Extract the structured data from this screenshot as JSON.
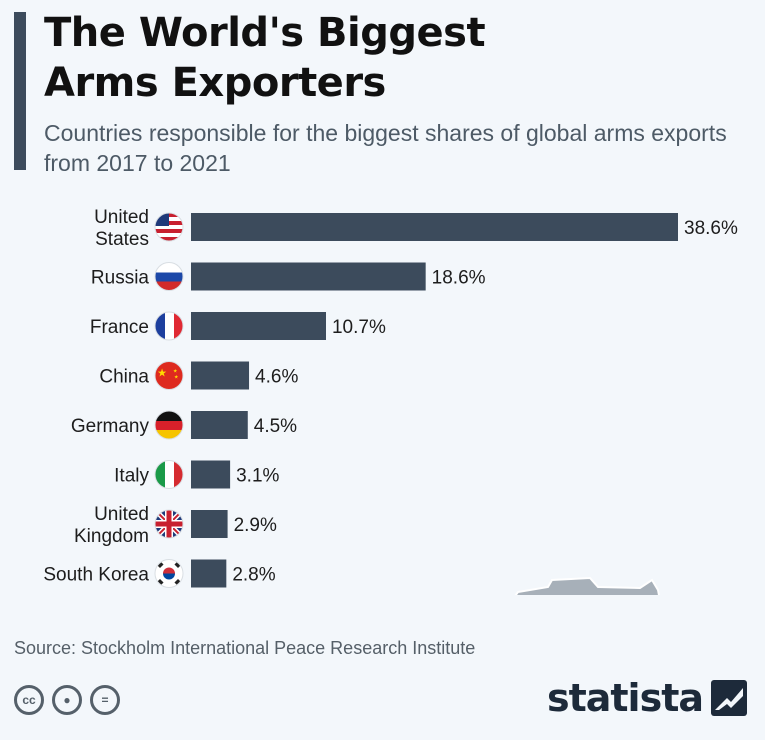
{
  "header": {
    "title_line1": "The World's Biggest",
    "title_line2": "Arms Exporters",
    "subtitle": "Countries responsible for the biggest shares of global arms exports from 2017 to 2021"
  },
  "chart_data": {
    "type": "bar",
    "orientation": "horizontal",
    "categories": [
      [
        "United",
        "States"
      ],
      [
        "Russia"
      ],
      [
        "France"
      ],
      [
        "China"
      ],
      [
        "Germany"
      ],
      [
        "Italy"
      ],
      [
        "United",
        "Kingdom"
      ],
      [
        "South Korea"
      ]
    ],
    "values": [
      38.6,
      18.6,
      10.7,
      4.6,
      4.5,
      3.1,
      2.9,
      2.8
    ],
    "value_labels": [
      "38.6%",
      "18.6%",
      "10.7%",
      "4.6%",
      "4.5%",
      "3.1%",
      "2.9%",
      "2.8%"
    ],
    "flags": [
      "us-flag-icon",
      "russia-flag-icon",
      "france-flag-icon",
      "china-flag-icon",
      "germany-flag-icon",
      "italy-flag-icon",
      "uk-flag-icon",
      "south-korea-flag-icon"
    ],
    "bar_color": "#3c4b5c",
    "xlim": [
      0,
      38.6
    ]
  },
  "footer": {
    "source": "Source: Stockholm International Peace Research Institute",
    "logo": "statista",
    "license_icons": [
      "cc-icon",
      "attribution-icon",
      "no-derivatives-icon"
    ]
  },
  "colors": {
    "accent": "#3c4b5c",
    "tank": "#a7b0b9",
    "background": "#f3f7fb"
  }
}
